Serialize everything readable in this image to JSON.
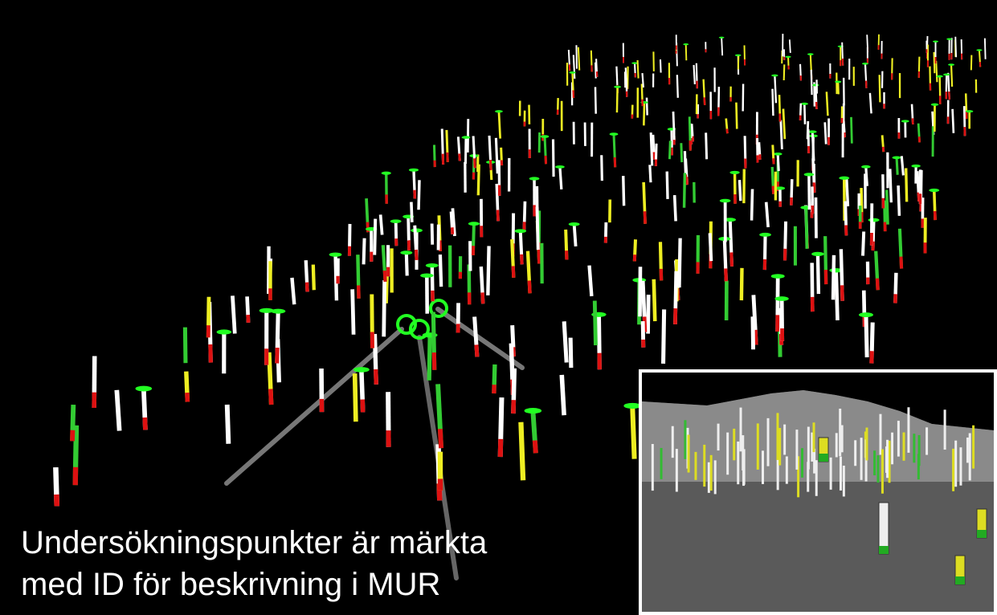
{
  "caption": {
    "lines": [
      "Undersökningspunkter är märkta",
      "med ID för beskrivning i MUR"
    ]
  }
}
